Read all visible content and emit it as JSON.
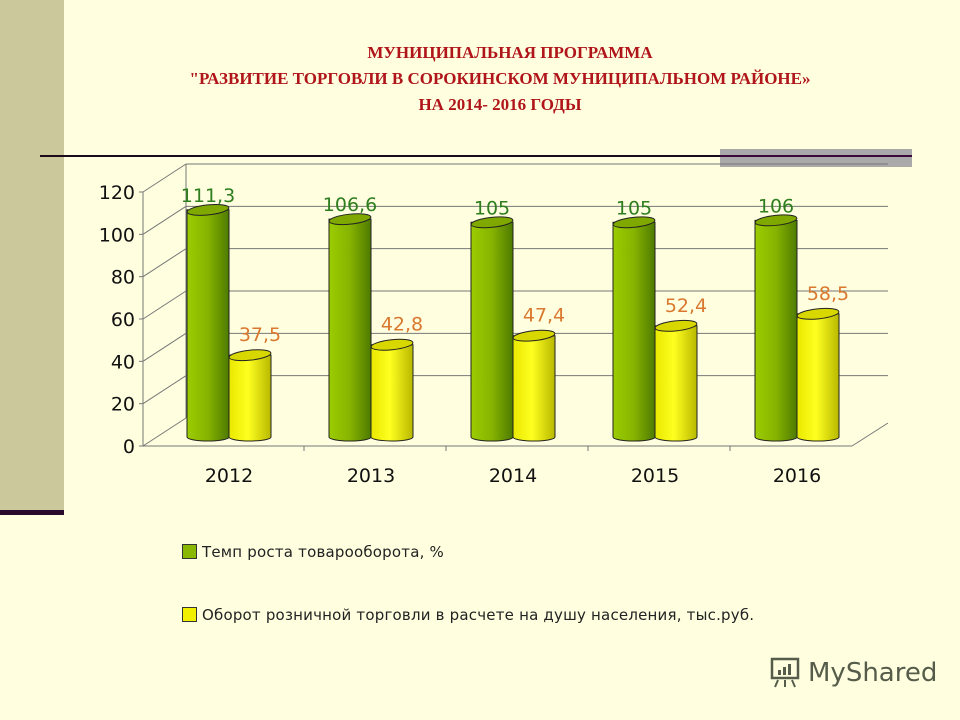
{
  "title": {
    "line1": "МУНИЦИПАЛЬНАЯ  ПРОГРАММА",
    "line2": "\"РАЗВИТИЕ  ТОРГОВЛИ В СОРОКИНСКОМ  МУНИЦИПАЛЬНОМ  РАЙОНЕ»",
    "line3": "НА 2014- 2016 ГОДЫ"
  },
  "legend": {
    "series1": "Темп роста товарооборота, %",
    "series2": "Оборот розничной торговли в расчете на душу населения, тыс.руб."
  },
  "watermark": "MyShared",
  "colors": {
    "series1": "#8ab800",
    "series2": "#f0f000",
    "label1": "#2e7d1e",
    "label2": "#d9782e",
    "title": "#b0151a"
  },
  "chart_data": {
    "type": "bar",
    "title": "МУНИЦИПАЛЬНАЯ ПРОГРАММА \"РАЗВИТИЕ ТОРГОВЛИ В СОРОКИНСКОМ МУНИЦИПАЛЬНОМ РАЙОНЕ» НА 2014- 2016 ГОДЫ",
    "categories": [
      "2012",
      "2013",
      "2014",
      "2015",
      "2016"
    ],
    "series": [
      {
        "name": "Темп роста товарооборота, %",
        "values": [
          111.3,
          106.6,
          105,
          105,
          106
        ],
        "labels": [
          "111,3",
          "106,6",
          "105",
          "105",
          "106"
        ]
      },
      {
        "name": "Оборот розничной торговли в расчете на душу населения, тыс.руб.",
        "values": [
          37.5,
          42.8,
          47.4,
          52.4,
          58.5
        ],
        "labels": [
          "37,5",
          "42,8",
          "47,4",
          "52,4",
          "58,5"
        ]
      }
    ],
    "xlabel": "",
    "ylabel": "",
    "ylim": [
      0,
      120
    ],
    "yticks": [
      0,
      20,
      40,
      60,
      80,
      100,
      120
    ],
    "grid": true,
    "legend_position": "bottom",
    "style": "3d-cylinder"
  }
}
